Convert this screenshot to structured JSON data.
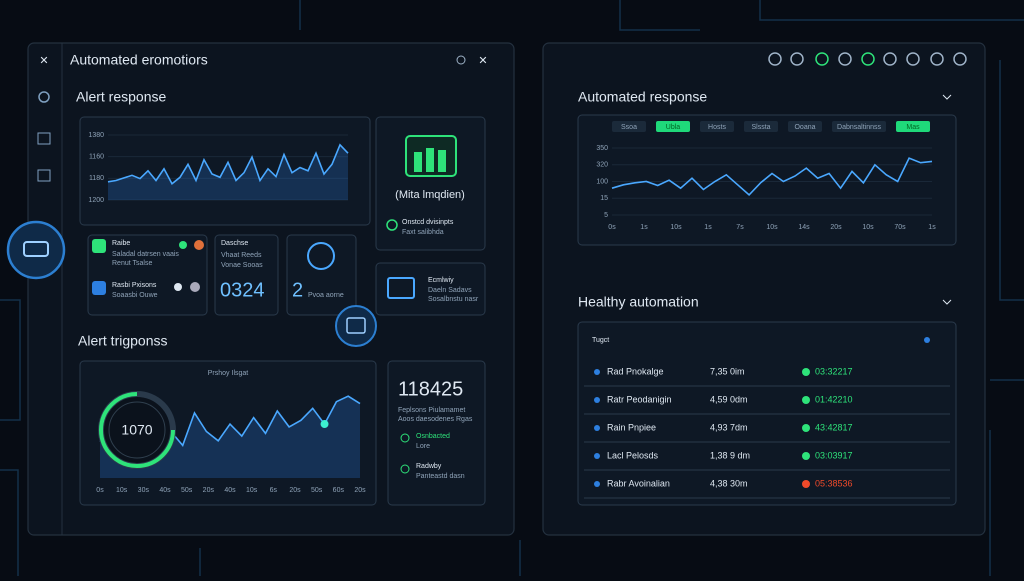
{
  "left_panel": {
    "title": "Automated eromotiors",
    "alert_response": {
      "title": "Alert response",
      "chart": {
        "axis_labels": [
          "1380",
          "1160",
          "1180",
          "1200"
        ],
        "ylim": [
          0,
          100
        ],
        "values": [
          28,
          30,
          34,
          38,
          33,
          45,
          30,
          48,
          25,
          35,
          55,
          30,
          62,
          40,
          35,
          58,
          30,
          42,
          66,
          30,
          48,
          36,
          70,
          42,
          50,
          45,
          72,
          40,
          55,
          85,
          72
        ]
      },
      "cards": [
        {
          "title": "Raibe",
          "lines": [
            "Saladal datrsen vaais",
            "Renut Tsalse"
          ]
        },
        {
          "title": "Rasbi Pxisons",
          "lines": [
            "Soaasbi Ouwe"
          ]
        },
        {
          "title": "Daschse",
          "lines": [
            "Vhaat Reeds",
            "Vonae Sooas"
          ],
          "value": "0324"
        },
        {
          "title": "2",
          "lines": [
            "Pvoa aorne"
          ]
        }
      ],
      "side_card": {
        "title": "(Mita lmqdien)",
        "lines": [
          "Onstcd dvisinpts",
          "Faxt salibhda"
        ]
      },
      "box_card": {
        "title": "Ecmlwiy",
        "lines": [
          "Daeln Sadavs",
          "Sosalbnstu nasr"
        ]
      }
    },
    "alert_trigger": {
      "title": "Alert trigponss",
      "chart": {
        "caption": "Prshoy Ilsgat",
        "gauge": "1070",
        "ylim": [
          0,
          100
        ],
        "x_labels": [
          "0s",
          "10s",
          "30s",
          "40s",
          "50s",
          "20s",
          "40s",
          "10s",
          "6s",
          "20s",
          "50s",
          "60s",
          "20s"
        ],
        "values": [
          40,
          30,
          45,
          55,
          38,
          60,
          50,
          35,
          70,
          50,
          40,
          58,
          45,
          65,
          48,
          72,
          55,
          62,
          75,
          58,
          82,
          88,
          80
        ]
      },
      "stat": {
        "value": "118425",
        "lines": [
          "Feplsons Piulamamet",
          "Aoos daesodenes Rgas"
        ],
        "items": [
          {
            "title": "Osnbacted",
            "sub": "Lore"
          },
          {
            "title": "Radwby",
            "sub": "Panteastd dasn"
          }
        ]
      }
    }
  },
  "right_panel": {
    "automated_response": {
      "title": "Automated response",
      "tabs": [
        "Ssoa",
        "Ubla",
        "Hosts",
        "Slssta",
        "Ooana",
        "Dabnsaltinnss",
        "Mas"
      ],
      "chart": {
        "axis_labels": [
          "350",
          "320",
          "100",
          "15",
          "5"
        ],
        "ylim": [
          0,
          100
        ],
        "x_labels": [
          "0s",
          "1s",
          "10s",
          "1s",
          "7s",
          "10s",
          "14s",
          "20s",
          "10s",
          "70s",
          "1s"
        ],
        "values": [
          40,
          45,
          48,
          50,
          44,
          52,
          40,
          55,
          38,
          50,
          60,
          45,
          30,
          48,
          62,
          50,
          58,
          70,
          55,
          62,
          40,
          65,
          48,
          75,
          60,
          50,
          85,
          78,
          80
        ]
      }
    },
    "healthy_automation": {
      "title": "Healthy automation",
      "header": "Tugct",
      "rows": [
        {
          "name": "Rad Pnokalge",
          "time": "7,35 0im",
          "status": "03:32217",
          "color": "#2ee37a"
        },
        {
          "name": "Ratr Peodanigin",
          "time": "4,59 0dm",
          "status": "01:42210",
          "color": "#2ee37a"
        },
        {
          "name": "Rain Pnpiee",
          "time": "4,93 7dm",
          "status": "43:42817",
          "color": "#2ee37a"
        },
        {
          "name": "Lacl Pelosds",
          "time": "1,38 9 dm",
          "status": "03:03917",
          "color": "#2ee37a"
        },
        {
          "name": "Rabr Avoinalian",
          "time": "4,38 30m",
          "status": "05:38536",
          "color": "#f04a2a"
        }
      ]
    }
  }
}
